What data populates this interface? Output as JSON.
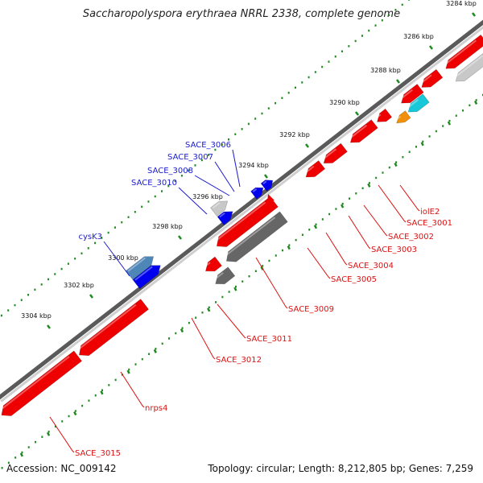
{
  "title": "Saccharopolyspora erythraea NRRL 2338, complete genome",
  "footer": {
    "accession_label": "Accession:",
    "accession": "NC_009142",
    "topology_label": "Topology: circular; Length: 8,212,805 bp; Genes: 7,259"
  },
  "colors": {
    "backbone": "#8a8a8a",
    "tick": "#1f8a1f",
    "forward_gene": "#0000ee",
    "reverse_gene": "#ee0000",
    "forward_label": "#1a1ad0",
    "reverse_label": "#dd1111",
    "pseudo_gray": "#666666",
    "light_gray": "#c8c8c8",
    "orange": "#f0900a",
    "cyan": "#19c8d8",
    "steel_blue": "#4f86b8"
  },
  "scale": {
    "unit": "kbp",
    "ticks": [
      "3284 kbp",
      "3286 kbp",
      "3288 kbp",
      "3290 kbp",
      "3292 kbp",
      "3294 kbp",
      "3296 kbp",
      "3298 kbp",
      "3300 kbp",
      "3302 kbp",
      "3304 kbp"
    ]
  },
  "genes": {
    "forward": [
      {
        "label": "SACE_3006",
        "color": "#0000ee"
      },
      {
        "label": "SACE_3007",
        "color": "#c8c8c8"
      },
      {
        "label": "SACE_3008",
        "color": "#0000ee"
      },
      {
        "label": "SACE_3010",
        "color": "#c8c8c8"
      },
      {
        "label": "cysK3",
        "color": "#4f86b8"
      }
    ],
    "reverse": [
      {
        "label": "iolE2",
        "color": "#19c8d8"
      },
      {
        "label": "SACE_3001",
        "color": "#f0900a"
      },
      {
        "label": "SACE_3002",
        "color": "#ee0000"
      },
      {
        "label": "SACE_3003",
        "color": "#ee0000"
      },
      {
        "label": "SACE_3004",
        "color": "#ee0000"
      },
      {
        "label": "SACE_3005",
        "color": "#ee0000"
      },
      {
        "label": "SACE_3009",
        "color": "#ee0000"
      },
      {
        "label": "SACE_3011",
        "color": "#666666"
      },
      {
        "label": "SACE_3012",
        "color": "#666666"
      },
      {
        "label": "nrps4",
        "color": "#ee0000"
      },
      {
        "label": "SACE_3015",
        "color": "#ee0000"
      }
    ]
  }
}
